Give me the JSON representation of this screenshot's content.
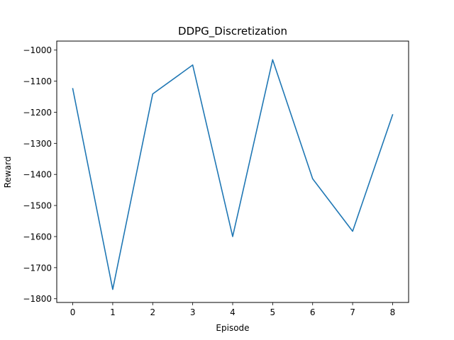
{
  "chart_data": {
    "type": "line",
    "title": "DDPG_Discretization",
    "xlabel": "Episode",
    "ylabel": "Reward",
    "xlim": [
      -0.4,
      8.4
    ],
    "ylim": [
      -1812,
      -971
    ],
    "x_ticks": [
      0,
      1,
      2,
      3,
      4,
      5,
      6,
      7,
      8
    ],
    "y_ticks": [
      -1000,
      -1100,
      -1200,
      -1300,
      -1400,
      -1500,
      -1600,
      -1700,
      -1800
    ],
    "x_tick_labels": [
      "0",
      "1",
      "2",
      "3",
      "4",
      "5",
      "6",
      "7",
      "8"
    ],
    "y_tick_labels": [
      "−1000",
      "−1100",
      "−1200",
      "−1300",
      "−1400",
      "−1500",
      "−1600",
      "−1700",
      "−1800"
    ],
    "grid": false,
    "series": [
      {
        "color": "#1f77b4",
        "x": [
          0,
          1,
          2,
          3,
          4,
          5,
          6,
          7,
          8
        ],
        "y": [
          -1124,
          -1770,
          -1141,
          -1048,
          -1600,
          -1031,
          -1414,
          -1583,
          -1208
        ]
      }
    ]
  }
}
